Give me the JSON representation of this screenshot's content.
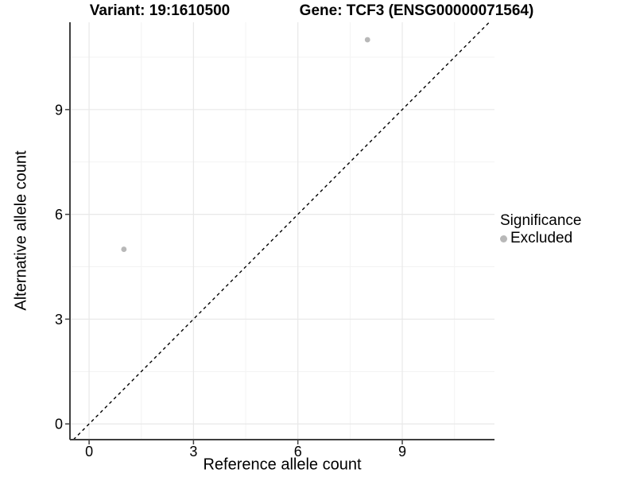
{
  "titles": {
    "variant": "Variant: 19:1610500",
    "gene": "Gene: TCF3 (ENSG00000071564)"
  },
  "axes": {
    "x_label": "Reference allele count",
    "y_label": "Alternative allele count"
  },
  "legend": {
    "title": "Significance",
    "items": [
      {
        "label": "Excluded",
        "color": "#b8b8b8"
      }
    ]
  },
  "chart_data": {
    "type": "scatter",
    "title": "Variant: 19:1610500 | Gene: TCF3 (ENSG00000071564)",
    "xlabel": "Reference allele count",
    "ylabel": "Alternative allele count",
    "xlim": [
      -0.55,
      11.65
    ],
    "ylim": [
      -0.45,
      11.5
    ],
    "x_ticks": [
      0,
      3,
      6,
      9
    ],
    "y_ticks": [
      0,
      3,
      6,
      9
    ],
    "x_minor_ticks": [
      1.5,
      4.5,
      7.5,
      10.5
    ],
    "y_minor_ticks": [
      1.5,
      4.5,
      7.5,
      10.5
    ],
    "grid": true,
    "legend_position": "right",
    "points": [
      {
        "x": 1,
        "y": 5,
        "significance": "Excluded"
      },
      {
        "x": 8,
        "y": 11,
        "significance": "Excluded"
      }
    ],
    "identity_line": {
      "style": "dashed",
      "slope": 1,
      "intercept": 0,
      "color": "#000000"
    },
    "colors": {
      "excluded": "#b8b8b8",
      "grid_major": "#e8e8e8",
      "grid_minor": "#f3f3f3",
      "axis": "#3f3f3f",
      "text": "#000000"
    }
  }
}
